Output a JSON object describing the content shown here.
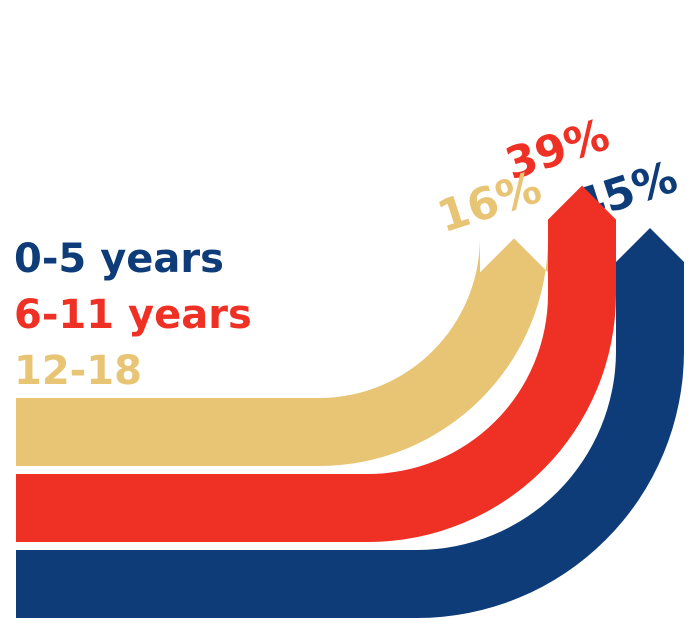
{
  "chart_data": {
    "type": "bar",
    "title": "",
    "xlabel": "",
    "ylabel": "",
    "grid": false,
    "legend_placement": "left",
    "categories": [
      "0-5 years",
      "6-11 years",
      "12-18"
    ],
    "values": [
      45,
      39,
      16
    ],
    "value_labels": [
      "45%",
      "39%",
      "16%"
    ],
    "unit": "%",
    "colors": [
      "#0e3c78",
      "#ee3124",
      "#e8c475"
    ]
  }
}
